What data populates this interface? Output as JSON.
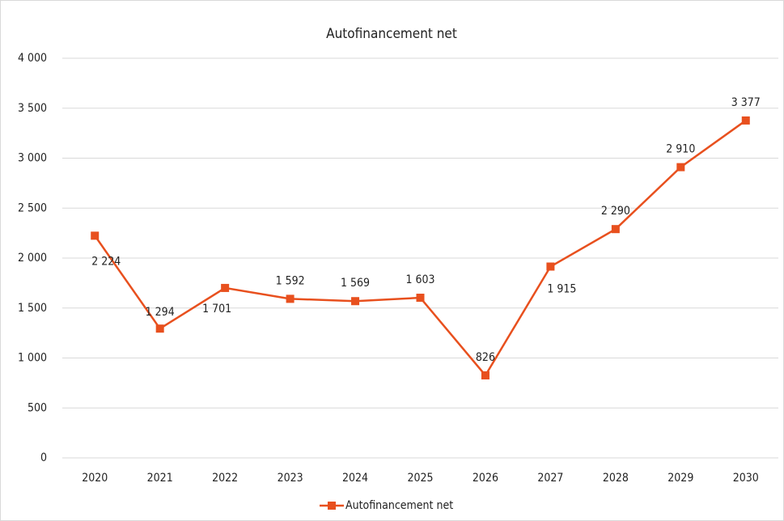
{
  "chart_data": {
    "type": "line",
    "title": "Autofinancement net",
    "categories": [
      "2020",
      "2021",
      "2022",
      "2023",
      "2024",
      "2025",
      "2026",
      "2027",
      "2028",
      "2029",
      "2030"
    ],
    "series": [
      {
        "name": "Autofinancement net",
        "color": "#e8501e",
        "values": [
          2224,
          1294,
          1701,
          1592,
          1569,
          1603,
          826,
          1915,
          2290,
          2910,
          3377
        ],
        "value_labels": [
          "2 224",
          "1 294",
          "1 701",
          "1 592",
          "1 569",
          "1 603",
          "826",
          "1 915",
          "2 290",
          "2 910",
          "3 377"
        ]
      }
    ],
    "ylim": [
      0,
      4000
    ],
    "yticks": [
      0,
      500,
      {
        "value": 1000,
        "label": "1 000"
      },
      {
        "value": 1500,
        "label": "1 500"
      },
      {
        "value": 2000,
        "label": "2 000"
      },
      {
        "value": 2500,
        "label": "2 500"
      },
      {
        "value": 3000,
        "label": "3 000"
      },
      {
        "value": 3500,
        "label": "3 500"
      },
      {
        "value": 4000,
        "label": "4 000"
      }
    ],
    "grid": true,
    "legend": "bottom"
  }
}
